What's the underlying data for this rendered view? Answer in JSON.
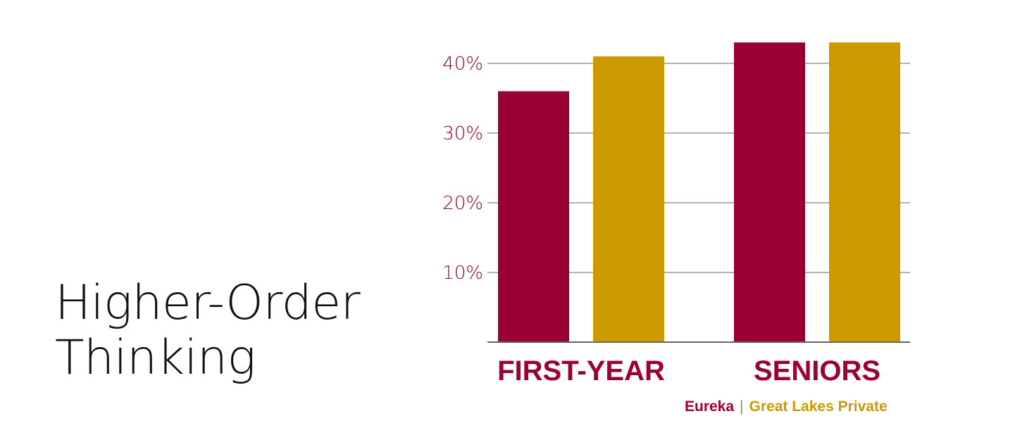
{
  "title": {
    "line1": "Higher-Order",
    "line2": "Thinking"
  },
  "colors": {
    "eureka": "#990033",
    "great_lakes": "#cc9900",
    "grid": "#999999",
    "axis": "#666666",
    "separator": "#888888"
  },
  "legend": {
    "separator": "|"
  },
  "chart_data": {
    "type": "bar",
    "categories": [
      "FIRST-YEAR",
      "SENIORS"
    ],
    "series": [
      {
        "name": "Eureka",
        "values": [
          36,
          43
        ]
      },
      {
        "name": "Great Lakes Private",
        "values": [
          41,
          43
        ]
      }
    ],
    "yticks": [
      "10%",
      "20%",
      "30%",
      "40%"
    ],
    "ytick_values": [
      10,
      20,
      30,
      40
    ],
    "ylim": [
      0,
      45
    ],
    "grid": true,
    "legend_position": "bottom-right"
  }
}
